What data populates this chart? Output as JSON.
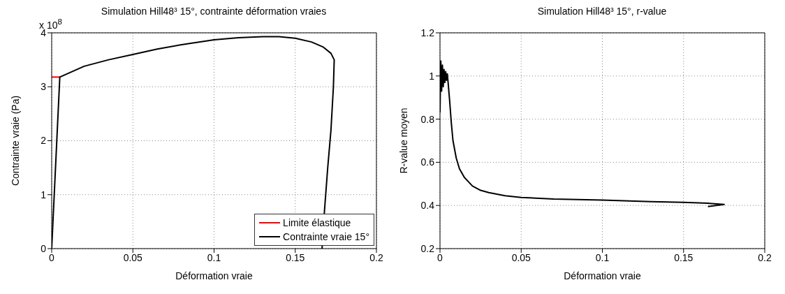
{
  "chart_data": [
    {
      "type": "line",
      "title": "Simulation Hill48³ 15°, contrainte déformation vraies",
      "xlabel": "Déformation vraie",
      "ylabel": "Contrainte vraie (Pa)",
      "annotations": [
        "x 10$^{8}$"
      ],
      "xlim": [
        0,
        0.2
      ],
      "xticks": [
        0,
        0.05,
        0.1,
        0.15,
        0.2
      ],
      "ylim": [
        0,
        4
      ],
      "yticks": [
        0,
        1,
        2,
        3,
        4
      ],
      "grid": true,
      "legend": "bottom right",
      "marker": "none",
      "line_style": "solid",
      "series": [
        {
          "name": "Limite élastique",
          "color": "#ff0000",
          "x": [
            0,
            0.005
          ],
          "values": [
            3.18,
            3.18
          ]
        },
        {
          "name": "Contrainte vraie 15°",
          "color": "#000000",
          "x": [
            0,
            0.005,
            0.02,
            0.035,
            0.05,
            0.065,
            0.08,
            0.1,
            0.115,
            0.13,
            0.14,
            0.15,
            0.16,
            0.167,
            0.172,
            0.174,
            0.1735,
            0.172,
            0.17,
            0.168,
            0.1665
          ],
          "values": [
            0,
            3.18,
            3.38,
            3.5,
            3.6,
            3.7,
            3.78,
            3.87,
            3.91,
            3.93,
            3.93,
            3.9,
            3.83,
            3.74,
            3.62,
            3.5,
            3.0,
            2.2,
            1.5,
            0.7,
            0
          ]
        }
      ]
    },
    {
      "type": "line",
      "title": "Simulation Hill48³ 15°, r-value",
      "xlabel": "Déformation vraie",
      "ylabel": "R-value moyen",
      "xlim": [
        0,
        0.2
      ],
      "xticks": [
        0,
        0.05,
        0.1,
        0.15,
        0.2
      ],
      "ylim": [
        0.2,
        1.2
      ],
      "yticks": [
        0.2,
        0.4,
        0.6,
        0.8,
        1,
        1.2
      ],
      "grid": true,
      "marker": "none",
      "line_style": "solid",
      "series": [
        {
          "color": "#000000",
          "x": [
            0,
            0.0005,
            0.001,
            0.0015,
            0.002,
            0.0025,
            0.003,
            0.0035,
            0.004,
            0.0045,
            0.005,
            0.006,
            0.007,
            0.008,
            0.01,
            0.012,
            0.015,
            0.02,
            0.025,
            0.03,
            0.04,
            0.05,
            0.07,
            0.1,
            0.13,
            0.15,
            0.165,
            0.175,
            0.17,
            0.165
          ],
          "values": [
            0.83,
            1.07,
            0.93,
            1.05,
            0.95,
            1.03,
            0.97,
            1.02,
            0.98,
            1.01,
            0.97,
            0.88,
            0.78,
            0.7,
            0.62,
            0.57,
            0.53,
            0.49,
            0.47,
            0.46,
            0.445,
            0.437,
            0.43,
            0.425,
            0.418,
            0.414,
            0.41,
            0.405,
            0.4,
            0.395
          ]
        }
      ]
    }
  ]
}
